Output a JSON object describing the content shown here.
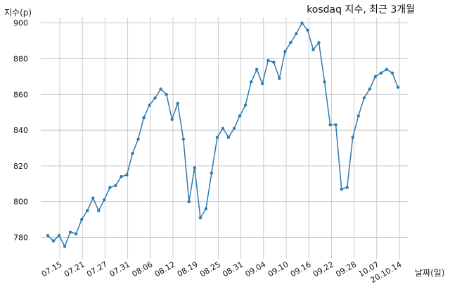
{
  "chart_data": {
    "type": "line",
    "title": "kosdaq 지수, 최근 3개월",
    "ylabel": "지수(p)",
    "xlabel": "날짜(일)",
    "x_ticks": [
      "07.15",
      "07.21",
      "07.27",
      "07.31",
      "08.06",
      "08.12",
      "08.19",
      "08.25",
      "08.31",
      "09.04",
      "09.10",
      "09.16",
      "09.22",
      "09.28",
      "10.07",
      "20.10.14"
    ],
    "y_ticks": [
      780,
      800,
      820,
      840,
      860,
      880,
      900
    ],
    "ylim": [
      768,
      903
    ],
    "grid": true,
    "series": [
      {
        "color": "#2e7bb0",
        "values": [
          781,
          778,
          781,
          775,
          783,
          782,
          790,
          795,
          802,
          795,
          801,
          808,
          809,
          814,
          815,
          827,
          835,
          847,
          854,
          858,
          863,
          860,
          846,
          855,
          835,
          800,
          819,
          791,
          796,
          816,
          836,
          841,
          836,
          841,
          848,
          854,
          867,
          874,
          866,
          879,
          878,
          869,
          884,
          889,
          894,
          900,
          896,
          885,
          889,
          867,
          843,
          843,
          807,
          808,
          836,
          848,
          858,
          863,
          870,
          872,
          874,
          872,
          864
        ]
      }
    ]
  }
}
